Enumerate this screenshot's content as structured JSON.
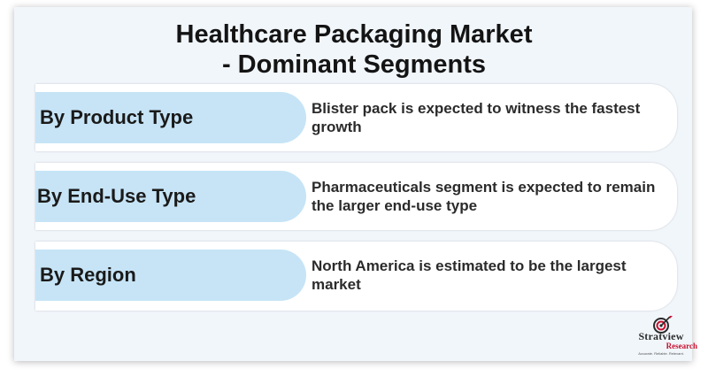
{
  "title": {
    "line1": "Healthcare Packaging Market",
    "line2": "- Dominant Segments"
  },
  "segments": [
    {
      "label": "By Product Type",
      "description": "Blister pack is expected to witness the fastest growth"
    },
    {
      "label": "By End-Use Type",
      "description": "Pharmaceuticals segment is expected to remain the larger end-use type"
    },
    {
      "label": "By Region",
      "description": "North America is estimated to be the largest market"
    }
  ],
  "logo": {
    "name": "Stratview",
    "sub": "Research",
    "tagline": "Accurate. Reliable. Relevant.",
    "icon": "target-icon",
    "accent": "#c8102e"
  },
  "colors": {
    "pill": "#c6e4f6",
    "card": "#f1f6fb"
  }
}
